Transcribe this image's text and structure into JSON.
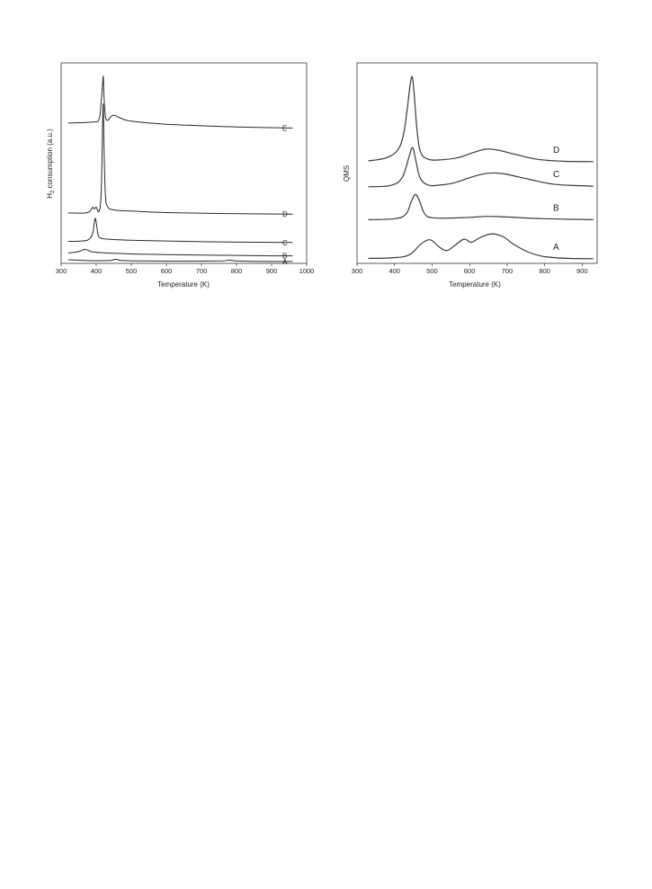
{
  "chart_data": [
    {
      "type": "line",
      "xlabel": "Temperature (K)",
      "ylabel": "H2 consumption (a.u.)",
      "xlim": [
        300,
        1000
      ],
      "x_ticks": [
        300,
        400,
        500,
        600,
        700,
        800,
        900,
        1000
      ],
      "yticks_shown": false,
      "grid": false,
      "series": [
        {
          "name": "A",
          "x": [
            320,
            360,
            400,
            440,
            455,
            470,
            520,
            600,
            700,
            760,
            780,
            800,
            850,
            960
          ],
          "y": [
            0.45,
            0.3,
            0.2,
            0.25,
            0.6,
            0.3,
            0.15,
            0.1,
            0.1,
            0.15,
            0.35,
            0.15,
            0.05,
            0.0
          ]
        },
        {
          "name": "B",
          "x": [
            320,
            350,
            365,
            375,
            390,
            420,
            500,
            600,
            700,
            800,
            900,
            960
          ],
          "y": [
            2.2,
            2.6,
            3.2,
            3.0,
            2.5,
            2.3,
            2.0,
            1.8,
            1.7,
            1.6,
            1.5,
            1.5
          ]
        },
        {
          "name": "C",
          "x": [
            320,
            360,
            380,
            390,
            395,
            398,
            402,
            406,
            412,
            430,
            500,
            600,
            800,
            960
          ],
          "y": [
            5.3,
            5.4,
            5.9,
            7.5,
            10.5,
            11.3,
            9.0,
            6.8,
            6.2,
            5.9,
            5.6,
            5.4,
            5.1,
            5.0
          ]
        },
        {
          "name": "D",
          "x": [
            320,
            370,
            385,
            390,
            395,
            400,
            408,
            414,
            418,
            420,
            422,
            426,
            432,
            450,
            500,
            600,
            800,
            960
          ],
          "y": [
            12.8,
            12.8,
            13.6,
            14.3,
            13.9,
            14.3,
            13.2,
            18.0,
            35.0,
            41.5,
            31.0,
            18.0,
            14.5,
            13.6,
            13.3,
            12.9,
            12.6,
            12.5
          ]
        },
        {
          "name": "E",
          "x": [
            320,
            390,
            408,
            414,
            418,
            420,
            422,
            426,
            432,
            440,
            450,
            470,
            500,
            600,
            800,
            960
          ],
          "y": [
            36.5,
            36.8,
            37.5,
            42.0,
            46.5,
            48.8,
            44.0,
            38.5,
            37.2,
            38.0,
            38.6,
            37.8,
            37.0,
            36.2,
            35.5,
            35.2
          ]
        }
      ]
    },
    {
      "type": "line",
      "xlabel": "Temperature (K)",
      "ylabel": "QMS",
      "xlim": [
        300,
        940
      ],
      "x_ticks": [
        300,
        400,
        500,
        600,
        700,
        800,
        900
      ],
      "yticks_shown": false,
      "grid": false,
      "series": [
        {
          "name": "A",
          "x": [
            330,
            400,
            440,
            470,
            495,
            520,
            540,
            560,
            585,
            605,
            630,
            660,
            690,
            720,
            760,
            800,
            860,
            930
          ],
          "y": [
            0.5,
            0.7,
            1.6,
            4.7,
            6.0,
            3.8,
            2.8,
            4.3,
            6.2,
            5.3,
            6.8,
            7.8,
            6.9,
            4.5,
            2.2,
            1.0,
            0.5,
            0.4
          ]
        },
        {
          "name": "B",
          "x": [
            330,
            400,
            430,
            445,
            455,
            465,
            480,
            500,
            550,
            600,
            650,
            700,
            800,
            930
          ],
          "y": [
            12.0,
            12.3,
            13.6,
            17.5,
            19.5,
            18.0,
            13.8,
            12.6,
            12.5,
            12.7,
            13.0,
            12.8,
            12.3,
            12.0
          ]
        },
        {
          "name": "C",
          "x": [
            330,
            390,
            420,
            438,
            448,
            456,
            468,
            490,
            520,
            560,
            600,
            640,
            670,
            700,
            760,
            830,
            930
          ],
          "y": [
            21.8,
            22.2,
            24.5,
            30.5,
            33.5,
            30.0,
            24.5,
            22.3,
            22.3,
            23.0,
            24.5,
            25.7,
            25.9,
            25.5,
            24.0,
            22.5,
            22.0
          ]
        },
        {
          "name": "D",
          "x": [
            330,
            380,
            410,
            425,
            435,
            442,
            447,
            452,
            460,
            470,
            490,
            520,
            570,
            610,
            645,
            680,
            720,
            780,
            850,
            930
          ],
          "y": [
            29.5,
            30.5,
            33.0,
            38.0,
            46.0,
            52.5,
            54.5,
            50.0,
            38.5,
            32.0,
            30.0,
            29.8,
            30.5,
            32.0,
            33.0,
            32.6,
            31.5,
            30.0,
            29.4,
            29.3
          ]
        }
      ]
    }
  ]
}
